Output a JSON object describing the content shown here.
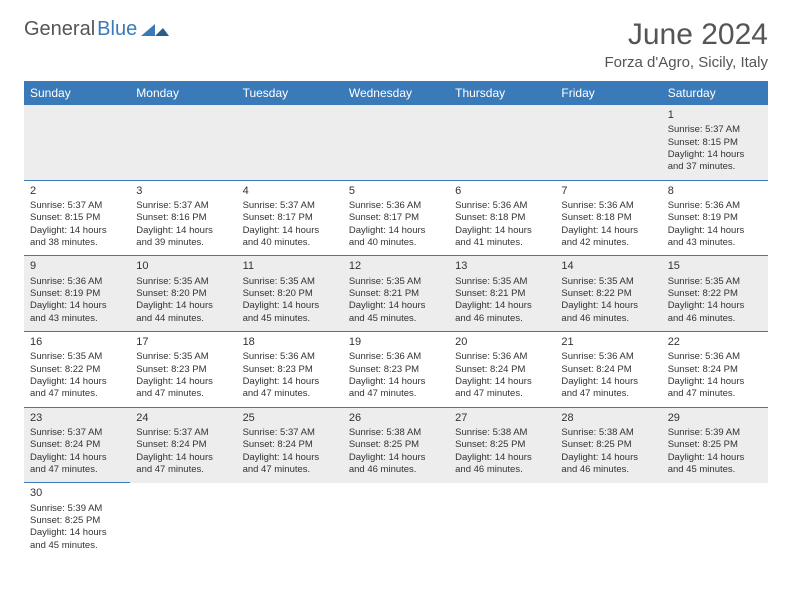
{
  "logo": {
    "general": "General",
    "blue": "Blue"
  },
  "title": "June 2024",
  "subtitle": "Forza d'Agro, Sicily, Italy",
  "accent_color": "#3a7ab8",
  "alt_row_color": "#ededed",
  "background_color": "#ffffff",
  "text_color": "#333333",
  "weekdays": [
    "Sunday",
    "Monday",
    "Tuesday",
    "Wednesday",
    "Thursday",
    "Friday",
    "Saturday"
  ],
  "labels": {
    "sunrise": "Sunrise: ",
    "sunset": "Sunset: ",
    "daylight": "Daylight: ",
    "hours_and": " hours and ",
    "minutes": " minutes."
  },
  "weeks": [
    [
      null,
      null,
      null,
      null,
      null,
      null,
      {
        "n": "1",
        "sr": "5:37 AM",
        "ss": "8:15 PM",
        "dh": "14",
        "dm": "37"
      }
    ],
    [
      {
        "n": "2",
        "sr": "5:37 AM",
        "ss": "8:15 PM",
        "dh": "14",
        "dm": "38"
      },
      {
        "n": "3",
        "sr": "5:37 AM",
        "ss": "8:16 PM",
        "dh": "14",
        "dm": "39"
      },
      {
        "n": "4",
        "sr": "5:37 AM",
        "ss": "8:17 PM",
        "dh": "14",
        "dm": "40"
      },
      {
        "n": "5",
        "sr": "5:36 AM",
        "ss": "8:17 PM",
        "dh": "14",
        "dm": "40"
      },
      {
        "n": "6",
        "sr": "5:36 AM",
        "ss": "8:18 PM",
        "dh": "14",
        "dm": "41"
      },
      {
        "n": "7",
        "sr": "5:36 AM",
        "ss": "8:18 PM",
        "dh": "14",
        "dm": "42"
      },
      {
        "n": "8",
        "sr": "5:36 AM",
        "ss": "8:19 PM",
        "dh": "14",
        "dm": "43"
      }
    ],
    [
      {
        "n": "9",
        "sr": "5:36 AM",
        "ss": "8:19 PM",
        "dh": "14",
        "dm": "43"
      },
      {
        "n": "10",
        "sr": "5:35 AM",
        "ss": "8:20 PM",
        "dh": "14",
        "dm": "44"
      },
      {
        "n": "11",
        "sr": "5:35 AM",
        "ss": "8:20 PM",
        "dh": "14",
        "dm": "45"
      },
      {
        "n": "12",
        "sr": "5:35 AM",
        "ss": "8:21 PM",
        "dh": "14",
        "dm": "45"
      },
      {
        "n": "13",
        "sr": "5:35 AM",
        "ss": "8:21 PM",
        "dh": "14",
        "dm": "46"
      },
      {
        "n": "14",
        "sr": "5:35 AM",
        "ss": "8:22 PM",
        "dh": "14",
        "dm": "46"
      },
      {
        "n": "15",
        "sr": "5:35 AM",
        "ss": "8:22 PM",
        "dh": "14",
        "dm": "46"
      }
    ],
    [
      {
        "n": "16",
        "sr": "5:35 AM",
        "ss": "8:22 PM",
        "dh": "14",
        "dm": "47"
      },
      {
        "n": "17",
        "sr": "5:35 AM",
        "ss": "8:23 PM",
        "dh": "14",
        "dm": "47"
      },
      {
        "n": "18",
        "sr": "5:36 AM",
        "ss": "8:23 PM",
        "dh": "14",
        "dm": "47"
      },
      {
        "n": "19",
        "sr": "5:36 AM",
        "ss": "8:23 PM",
        "dh": "14",
        "dm": "47"
      },
      {
        "n": "20",
        "sr": "5:36 AM",
        "ss": "8:24 PM",
        "dh": "14",
        "dm": "47"
      },
      {
        "n": "21",
        "sr": "5:36 AM",
        "ss": "8:24 PM",
        "dh": "14",
        "dm": "47"
      },
      {
        "n": "22",
        "sr": "5:36 AM",
        "ss": "8:24 PM",
        "dh": "14",
        "dm": "47"
      }
    ],
    [
      {
        "n": "23",
        "sr": "5:37 AM",
        "ss": "8:24 PM",
        "dh": "14",
        "dm": "47"
      },
      {
        "n": "24",
        "sr": "5:37 AM",
        "ss": "8:24 PM",
        "dh": "14",
        "dm": "47"
      },
      {
        "n": "25",
        "sr": "5:37 AM",
        "ss": "8:24 PM",
        "dh": "14",
        "dm": "47"
      },
      {
        "n": "26",
        "sr": "5:38 AM",
        "ss": "8:25 PM",
        "dh": "14",
        "dm": "46"
      },
      {
        "n": "27",
        "sr": "5:38 AM",
        "ss": "8:25 PM",
        "dh": "14",
        "dm": "46"
      },
      {
        "n": "28",
        "sr": "5:38 AM",
        "ss": "8:25 PM",
        "dh": "14",
        "dm": "46"
      },
      {
        "n": "29",
        "sr": "5:39 AM",
        "ss": "8:25 PM",
        "dh": "14",
        "dm": "45"
      }
    ],
    [
      {
        "n": "30",
        "sr": "5:39 AM",
        "ss": "8:25 PM",
        "dh": "14",
        "dm": "45"
      },
      null,
      null,
      null,
      null,
      null,
      null
    ]
  ]
}
